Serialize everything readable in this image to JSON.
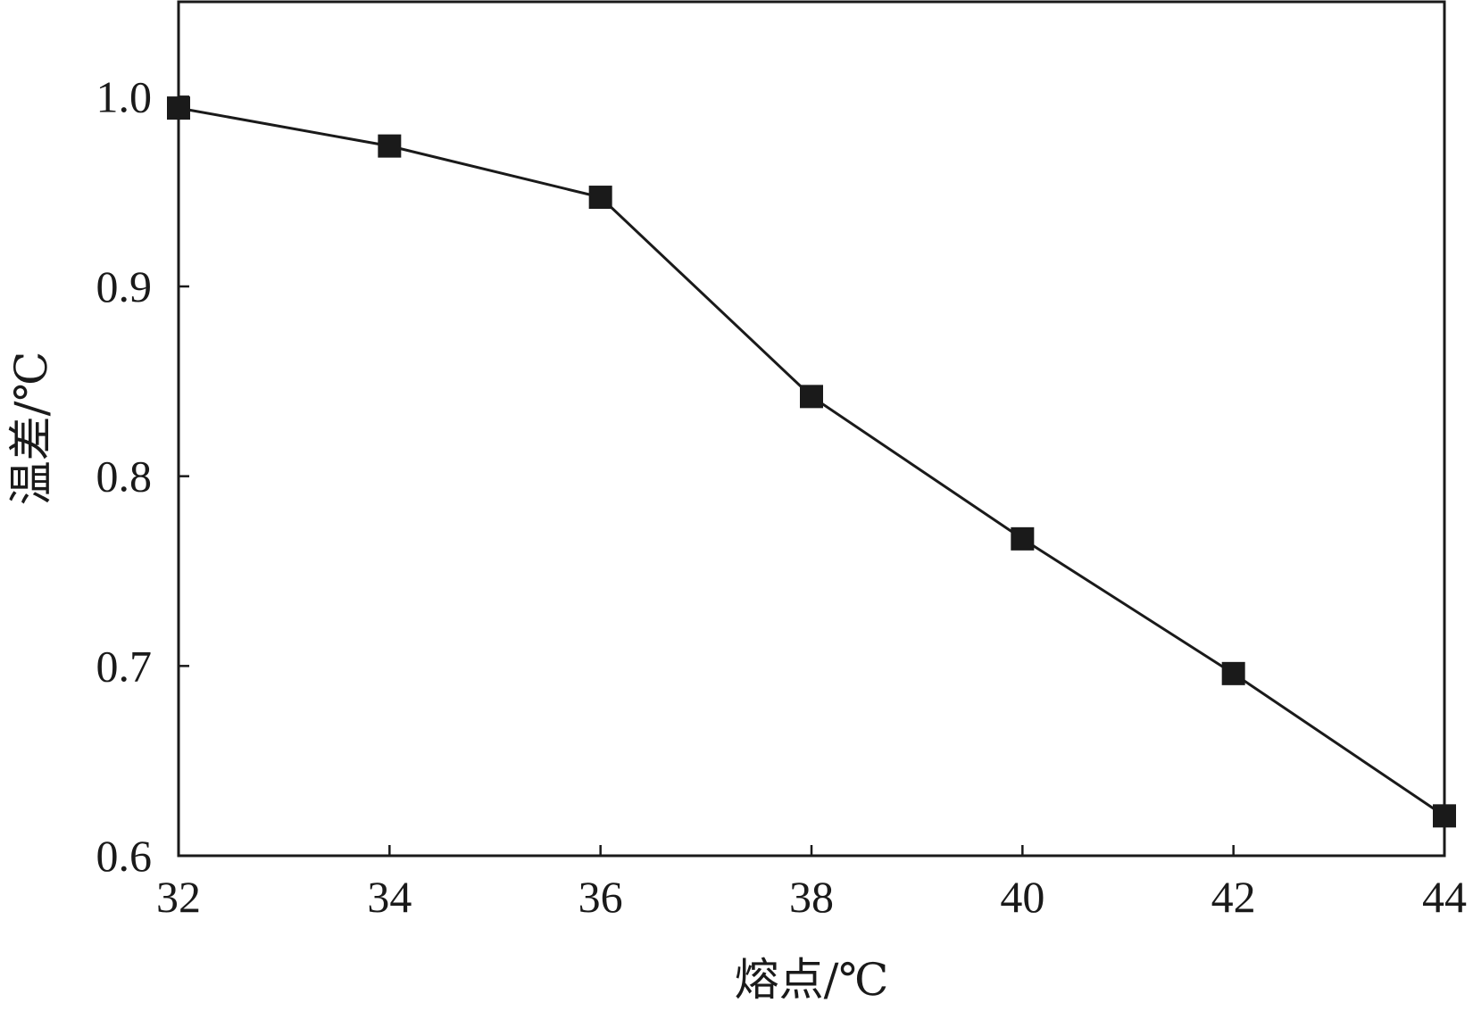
{
  "chart_data": {
    "type": "line",
    "title": "",
    "xlabel": "熔点/℃",
    "ylabel": "温差/℃",
    "xlim": [
      32,
      44
    ],
    "ylim": [
      0.6,
      1.05
    ],
    "xticks": [
      32,
      34,
      36,
      38,
      40,
      42,
      44
    ],
    "xtick_labels": [
      "32",
      "34",
      "36",
      "38",
      "40",
      "42",
      "44"
    ],
    "yticks": [
      0.6,
      0.7,
      0.8,
      0.9,
      1.0
    ],
    "ytick_labels": [
      "0.6",
      "0.7",
      "0.8",
      "0.9",
      "1.0"
    ],
    "grid": false,
    "marker": "square",
    "line_color": "#1a1a1a",
    "series": [
      {
        "x": [
          32,
          34,
          36,
          38,
          40,
          42,
          44
        ],
        "y": [
          0.994,
          0.974,
          0.947,
          0.842,
          0.767,
          0.696,
          0.621
        ]
      }
    ]
  }
}
